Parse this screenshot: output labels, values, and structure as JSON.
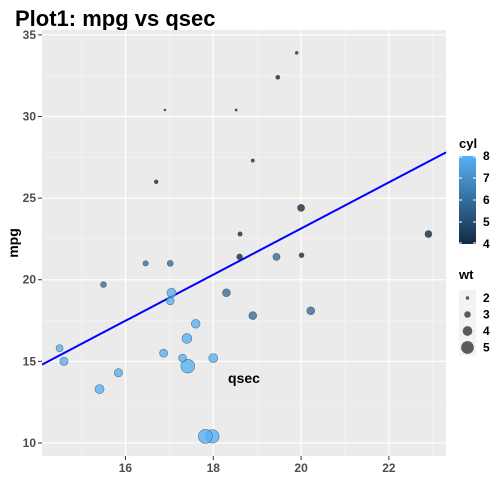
{
  "chart_data": {
    "type": "scatter",
    "title": "Plot1: mpg vs qsec",
    "xlabel": "qsec",
    "ylabel": "mpg",
    "xlim": [
      14.1,
      23.3
    ],
    "ylim": [
      9.2,
      35.3
    ],
    "x_ticks": [
      16,
      18,
      20,
      22
    ],
    "y_ticks": [
      10,
      15,
      20,
      25,
      30,
      35
    ],
    "x_tick_labels": [
      "16",
      "18",
      "20",
      "22"
    ],
    "y_tick_labels": [
      "10",
      "15",
      "20",
      "25",
      "30",
      "35"
    ],
    "grid": true,
    "panel_background": "#ebebeb",
    "trend_line": {
      "color": "#0000ff",
      "points": [
        [
          14.1,
          14.8
        ],
        [
          23.3,
          27.8
        ]
      ]
    },
    "points": [
      {
        "x": 16.46,
        "y": 21.0,
        "cyl": 6,
        "wt": 2.62
      },
      {
        "x": 17.02,
        "y": 21.0,
        "cyl": 6,
        "wt": 2.875
      },
      {
        "x": 18.61,
        "y": 22.8,
        "cyl": 4,
        "wt": 2.32
      },
      {
        "x": 19.44,
        "y": 21.4,
        "cyl": 6,
        "wt": 3.215
      },
      {
        "x": 17.02,
        "y": 18.7,
        "cyl": 8,
        "wt": 3.44
      },
      {
        "x": 20.22,
        "y": 18.1,
        "cyl": 6,
        "wt": 3.46
      },
      {
        "x": 15.84,
        "y": 14.3,
        "cyl": 8,
        "wt": 3.57
      },
      {
        "x": 20.0,
        "y": 24.4,
        "cyl": 4,
        "wt": 3.19
      },
      {
        "x": 22.9,
        "y": 22.8,
        "cyl": 4,
        "wt": 3.15
      },
      {
        "x": 18.3,
        "y": 19.2,
        "cyl": 6,
        "wt": 3.44
      },
      {
        "x": 18.9,
        "y": 17.8,
        "cyl": 6,
        "wt": 3.44
      },
      {
        "x": 17.4,
        "y": 16.4,
        "cyl": 8,
        "wt": 4.07
      },
      {
        "x": 17.6,
        "y": 17.3,
        "cyl": 8,
        "wt": 3.73
      },
      {
        "x": 18.0,
        "y": 15.2,
        "cyl": 8,
        "wt": 3.78
      },
      {
        "x": 17.98,
        "y": 10.4,
        "cyl": 8,
        "wt": 5.25
      },
      {
        "x": 17.82,
        "y": 10.4,
        "cyl": 8,
        "wt": 5.424
      },
      {
        "x": 17.42,
        "y": 14.7,
        "cyl": 8,
        "wt": 5.345
      },
      {
        "x": 19.47,
        "y": 32.4,
        "cyl": 4,
        "wt": 2.2
      },
      {
        "x": 18.52,
        "y": 30.4,
        "cyl": 4,
        "wt": 1.615
      },
      {
        "x": 19.9,
        "y": 33.9,
        "cyl": 4,
        "wt": 1.835
      },
      {
        "x": 20.01,
        "y": 21.5,
        "cyl": 4,
        "wt": 2.465
      },
      {
        "x": 16.87,
        "y": 15.5,
        "cyl": 8,
        "wt": 3.52
      },
      {
        "x": 17.3,
        "y": 15.2,
        "cyl": 8,
        "wt": 3.435
      },
      {
        "x": 15.41,
        "y": 13.3,
        "cyl": 8,
        "wt": 3.84
      },
      {
        "x": 17.05,
        "y": 19.2,
        "cyl": 8,
        "wt": 3.845
      },
      {
        "x": 18.9,
        "y": 27.3,
        "cyl": 4,
        "wt": 1.935
      },
      {
        "x": 16.7,
        "y": 26.0,
        "cyl": 4,
        "wt": 2.14
      },
      {
        "x": 16.9,
        "y": 30.4,
        "cyl": 4,
        "wt": 1.513
      },
      {
        "x": 14.5,
        "y": 15.8,
        "cyl": 8,
        "wt": 3.17
      },
      {
        "x": 15.5,
        "y": 19.7,
        "cyl": 6,
        "wt": 2.77
      },
      {
        "x": 14.6,
        "y": 15.0,
        "cyl": 8,
        "wt": 3.57
      },
      {
        "x": 18.6,
        "y": 21.4,
        "cyl": 4,
        "wt": 2.78
      }
    ],
    "legend": {
      "placement": "right",
      "color": {
        "title": "cyl",
        "min": 4,
        "max": 8,
        "low_color": "#132b43",
        "high_color": "#56b1f7",
        "breaks": [
          8,
          7,
          6,
          5,
          4
        ],
        "break_labels": [
          "8",
          "7",
          "6",
          "5",
          "4"
        ]
      },
      "size": {
        "title": "wt",
        "min": 1.513,
        "max": 5.424,
        "breaks": [
          2,
          3,
          4,
          5
        ],
        "break_labels": [
          "2",
          "3",
          "4",
          "5"
        ]
      }
    }
  }
}
